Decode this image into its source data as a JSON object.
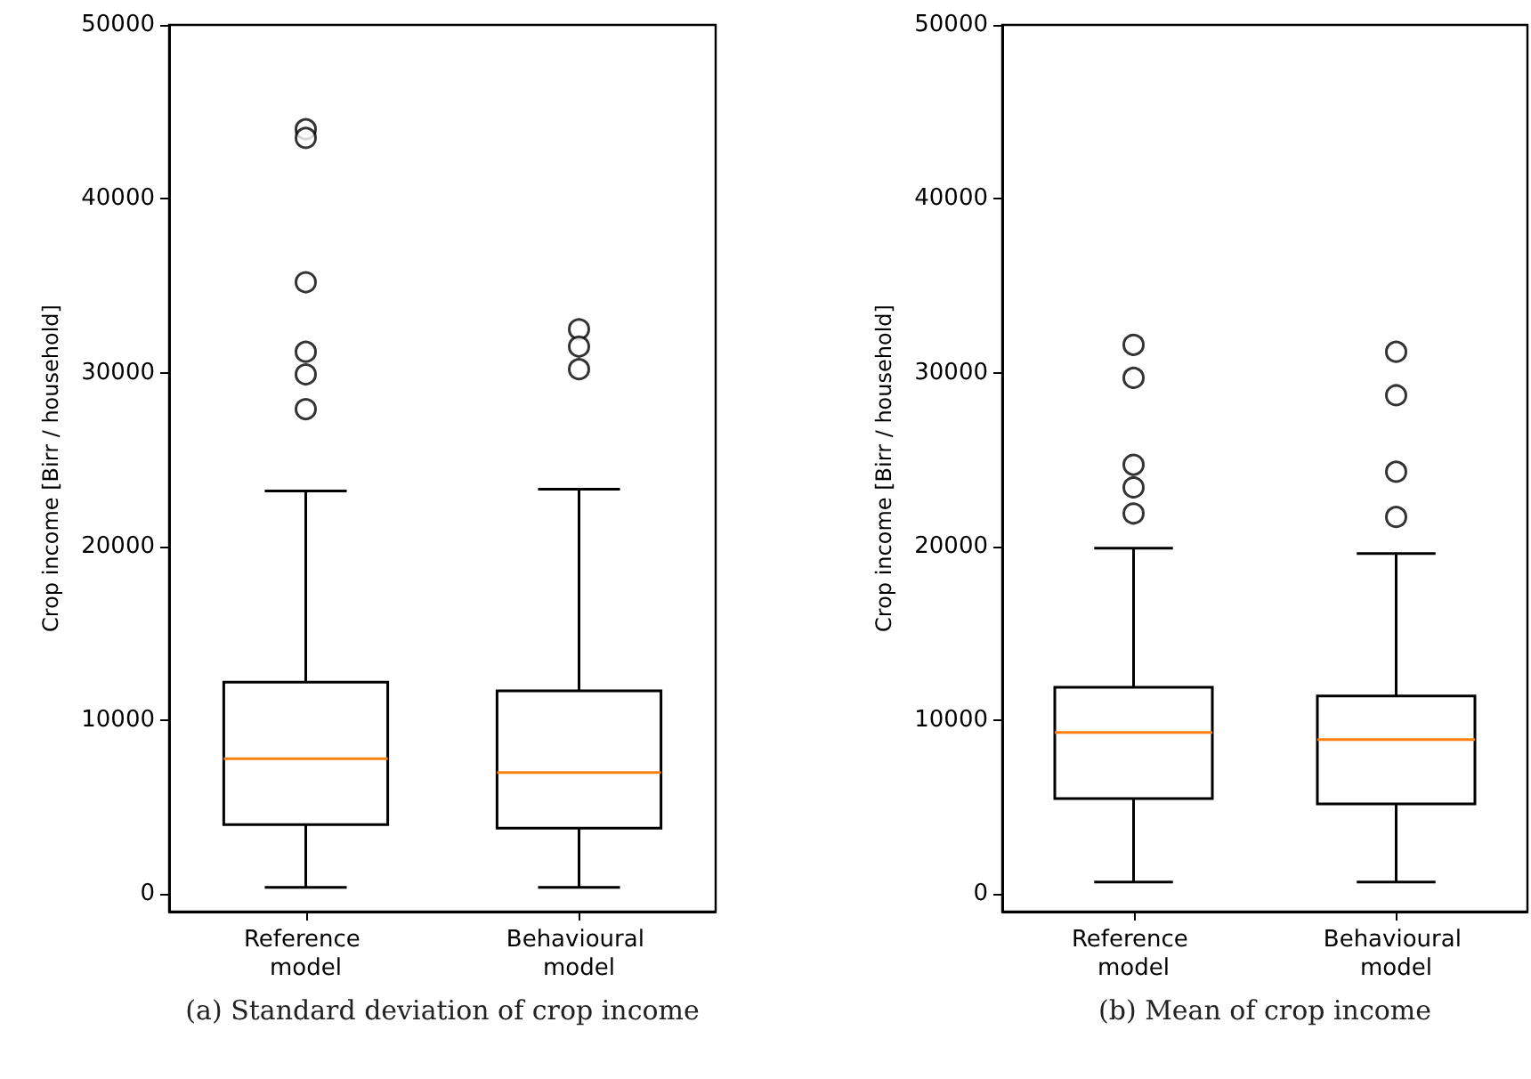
{
  "chart_data": [
    {
      "type": "box",
      "title": "(a) Standard deviation of crop income",
      "ylabel": "Crop income [Birr / household]",
      "categories": [
        "Reference model",
        "Behavioural model"
      ],
      "ylim": [
        -1000,
        50000
      ],
      "yticks": [
        0,
        10000,
        20000,
        30000,
        40000,
        50000
      ],
      "boxes": [
        {
          "low": 400,
          "q1": 4000,
          "median": 7800,
          "q3": 12200,
          "high": 23200,
          "outliers": [
            44000,
            43500,
            35200,
            31200,
            29900,
            27900
          ]
        },
        {
          "low": 400,
          "q1": 3800,
          "median": 7000,
          "q3": 11700,
          "high": 23300,
          "outliers": [
            32500,
            31500,
            30200
          ]
        }
      ]
    },
    {
      "type": "box",
      "title": "(b) Mean of crop income",
      "ylabel": "Crop income [Birr / household]",
      "categories": [
        "Reference model",
        "Behavioural model"
      ],
      "ylim": [
        -1000,
        50000
      ],
      "yticks": [
        0,
        10000,
        20000,
        30000,
        40000,
        50000
      ],
      "boxes": [
        {
          "low": 700,
          "q1": 5500,
          "median": 9300,
          "q3": 11900,
          "high": 19900,
          "outliers": [
            31600,
            29700,
            24700,
            23400,
            21900
          ]
        },
        {
          "low": 700,
          "q1": 5200,
          "median": 8900,
          "q3": 11400,
          "high": 19600,
          "outliers": [
            31200,
            28700,
            24300,
            21700
          ]
        }
      ]
    }
  ]
}
